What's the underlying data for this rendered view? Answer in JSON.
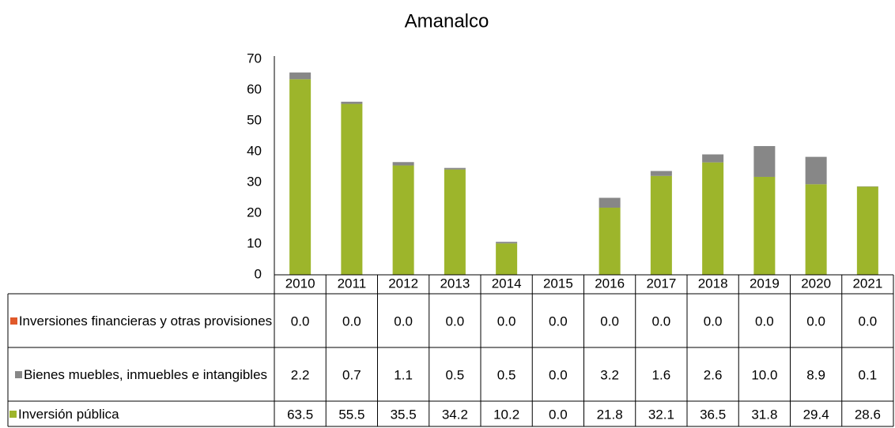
{
  "chart_data": {
    "type": "bar",
    "stacked": true,
    "title": "Amanalco",
    "categories": [
      "2010",
      "2011",
      "2012",
      "2013",
      "2014",
      "2015",
      "2016",
      "2017",
      "2018",
      "2019",
      "2020",
      "2021"
    ],
    "series": [
      {
        "name": "Inversión pública",
        "color": "#9db52b",
        "values": [
          63.5,
          55.5,
          35.5,
          34.2,
          10.2,
          0.0,
          21.8,
          32.1,
          36.5,
          31.8,
          29.4,
          28.6
        ],
        "value_labels": [
          "63.5",
          "55.5",
          "35.5",
          "34.2",
          "10.2",
          "0.0",
          "21.8",
          "32.1",
          "36.5",
          "31.8",
          "29.4",
          "28.6"
        ]
      },
      {
        "name": "Bienes muebles, inmuebles e intangibles",
        "color": "#878787",
        "values": [
          2.2,
          0.7,
          1.1,
          0.5,
          0.5,
          0.0,
          3.2,
          1.6,
          2.6,
          10.0,
          8.9,
          0.1
        ],
        "value_labels": [
          "2.2",
          "0.7",
          "1.1",
          "0.5",
          "0.5",
          "0.0",
          "3.2",
          "1.6",
          "2.6",
          "10.0",
          "8.9",
          "0.1"
        ]
      },
      {
        "name": "Inversiones financieras y otras provisiones",
        "color": "#e0592a",
        "values": [
          0.0,
          0.0,
          0.0,
          0.0,
          0.0,
          0.0,
          0.0,
          0.0,
          0.0,
          0.0,
          0.0,
          0.0
        ],
        "value_labels": [
          "0.0",
          "0.0",
          "0.0",
          "0.0",
          "0.0",
          "0.0",
          "0.0",
          "0.0",
          "0.0",
          "0.0",
          "0.0",
          "0.0"
        ]
      }
    ],
    "ylim": [
      0,
      70
    ],
    "yticks": [
      0,
      10,
      20,
      30,
      40,
      50,
      60,
      70
    ],
    "grid": false
  }
}
